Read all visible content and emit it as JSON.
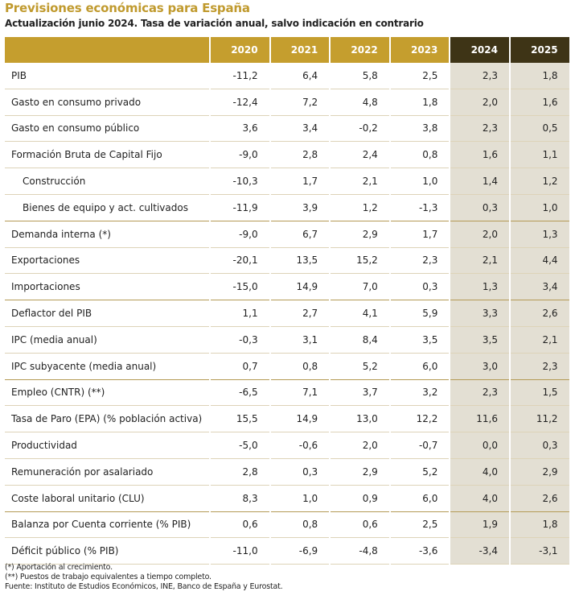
{
  "header": {
    "title": "Previsiones económicas para España",
    "subtitle": "Actualización junio 2024. Tasa de variación anual, salvo indicación en contrario"
  },
  "table": {
    "columns": [
      "2020",
      "2021",
      "2022",
      "2023",
      "2024",
      "2025"
    ],
    "forecast_columns": [
      "2024",
      "2025"
    ],
    "rows": [
      {
        "label": "PIB",
        "values": [
          "-11,2",
          "6,4",
          "5,8",
          "2,5",
          "2,3",
          "1,8"
        ],
        "indent": false,
        "sep": false
      },
      {
        "label": "Gasto en consumo privado",
        "values": [
          "-12,4",
          "7,2",
          "4,8",
          "1,8",
          "2,0",
          "1,6"
        ],
        "indent": false,
        "sep": false
      },
      {
        "label": "Gasto en consumo público",
        "values": [
          "3,6",
          "3,4",
          "-0,2",
          "3,8",
          "2,3",
          "0,5"
        ],
        "indent": false,
        "sep": false
      },
      {
        "label": "Formación Bruta de Capital Fijo",
        "values": [
          "-9,0",
          "2,8",
          "2,4",
          "0,8",
          "1,6",
          "1,1"
        ],
        "indent": false,
        "sep": false
      },
      {
        "label": "Construcción",
        "values": [
          "-10,3",
          "1,7",
          "2,1",
          "1,0",
          "1,4",
          "1,2"
        ],
        "indent": true,
        "sep": false
      },
      {
        "label": "Bienes de equipo y act. cultivados",
        "values": [
          "-11,9",
          "3,9",
          "1,2",
          "-1,3",
          "0,3",
          "1,0"
        ],
        "indent": true,
        "sep": true
      },
      {
        "label": "Demanda interna (*)",
        "values": [
          "-9,0",
          "6,7",
          "2,9",
          "1,7",
          "2,0",
          "1,3"
        ],
        "indent": false,
        "sep": false
      },
      {
        "label": "Exportaciones",
        "values": [
          "-20,1",
          "13,5",
          "15,2",
          "2,3",
          "2,1",
          "4,4"
        ],
        "indent": false,
        "sep": false
      },
      {
        "label": "Importaciones",
        "values": [
          "-15,0",
          "14,9",
          "7,0",
          "0,3",
          "1,3",
          "3,4"
        ],
        "indent": false,
        "sep": true
      },
      {
        "label": "Deflactor del PIB",
        "values": [
          "1,1",
          "2,7",
          "4,1",
          "5,9",
          "3,3",
          "2,6"
        ],
        "indent": false,
        "sep": false
      },
      {
        "label": "IPC (media anual)",
        "values": [
          "-0,3",
          "3,1",
          "8,4",
          "3,5",
          "3,5",
          "2,1"
        ],
        "indent": false,
        "sep": false
      },
      {
        "label": "IPC subyacente (media anual)",
        "values": [
          "0,7",
          "0,8",
          "5,2",
          "6,0",
          "3,0",
          "2,3"
        ],
        "indent": false,
        "sep": true
      },
      {
        "label": "Empleo (CNTR) (**)",
        "values": [
          "-6,5",
          "7,1",
          "3,7",
          "3,2",
          "2,3",
          "1,5"
        ],
        "indent": false,
        "sep": false
      },
      {
        "label": "Tasa de Paro (EPA) (% población activa)",
        "values": [
          "15,5",
          "14,9",
          "13,0",
          "12,2",
          "11,6",
          "11,2"
        ],
        "indent": false,
        "sep": false
      },
      {
        "label": "Productividad",
        "values": [
          "-5,0",
          "-0,6",
          "2,0",
          "-0,7",
          "0,0",
          "0,3"
        ],
        "indent": false,
        "sep": false
      },
      {
        "label": "Remuneración por asalariado",
        "values": [
          "2,8",
          "0,3",
          "2,9",
          "5,2",
          "4,0",
          "2,9"
        ],
        "indent": false,
        "sep": false
      },
      {
        "label": "Coste laboral unitario (CLU)",
        "values": [
          "8,3",
          "1,0",
          "0,9",
          "6,0",
          "4,0",
          "2,6"
        ],
        "indent": false,
        "sep": true
      },
      {
        "label": "Balanza por Cuenta corriente (% PIB)",
        "values": [
          "0,6",
          "0,8",
          "0,6",
          "2,5",
          "1,9",
          "1,8"
        ],
        "indent": false,
        "sep": false
      },
      {
        "label": "Déficit público (% PIB)",
        "values": [
          "-11,0",
          "-6,9",
          "-4,8",
          "-3,6",
          "-3,4",
          "-3,1"
        ],
        "indent": false,
        "sep": false
      }
    ]
  },
  "notes": [
    "(*) Aportación al crecimiento.",
    "(**) Puestos de trabajo equivalentes a tiempo completo.",
    "Fuente: Instituto de Estudios Económicos, INE, Banco de España y Eurostat."
  ],
  "colors": {
    "accent": "#c59e2e",
    "forecast_header": "#3e3416",
    "forecast_cell": "#e3dfd3"
  }
}
